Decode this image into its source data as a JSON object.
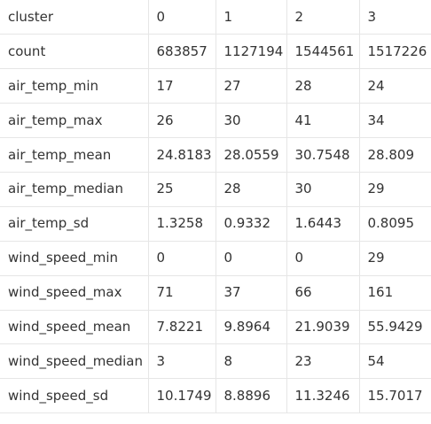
{
  "table": {
    "header": [
      "cluster",
      "0",
      "1",
      "2",
      "3"
    ],
    "rows": [
      [
        "count",
        "683857",
        "1127194",
        "1544561",
        "1517226"
      ],
      [
        "air_temp_min",
        "17",
        "27",
        "28",
        "24"
      ],
      [
        "air_temp_max",
        "26",
        "30",
        "41",
        "34"
      ],
      [
        "air_temp_mean",
        "24.8183",
        "28.0559",
        "30.7548",
        "28.809"
      ],
      [
        "air_temp_median",
        "25",
        "28",
        "30",
        "29"
      ],
      [
        "air_temp_sd",
        "1.3258",
        "0.9332",
        "1.6443",
        "0.8095"
      ],
      [
        "wind_speed_min",
        "0",
        "0",
        "0",
        "29"
      ],
      [
        "wind_speed_max",
        "71",
        "37",
        "66",
        "161"
      ],
      [
        "wind_speed_mean",
        "7.8221",
        "9.8964",
        "21.9039",
        "55.9429"
      ],
      [
        "wind_speed_median",
        "3",
        "8",
        "23",
        "54"
      ],
      [
        "wind_speed_sd",
        "10.1749",
        "8.8896",
        "11.3246",
        "15.7017"
      ]
    ]
  }
}
